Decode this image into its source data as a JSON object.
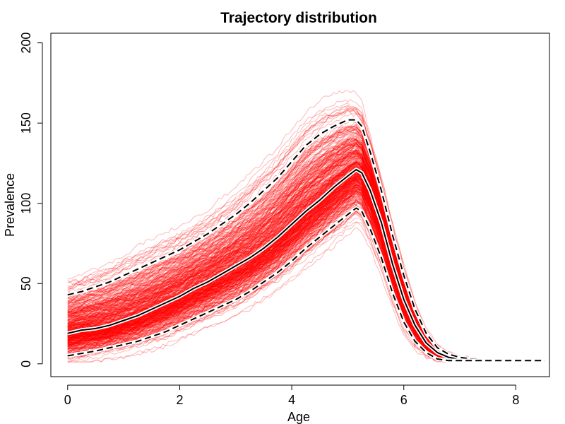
{
  "chart_data": {
    "type": "line",
    "title": "Trajectory distribution",
    "xlabel": "Age",
    "ylabel": "Prevalence",
    "xlim": [
      -0.3,
      8.6
    ],
    "ylim": [
      -8,
      206
    ],
    "x_ticks": [
      0,
      2,
      4,
      6,
      8
    ],
    "y_ticks": [
      0,
      50,
      100,
      150,
      200
    ],
    "x_tick_labels": [
      "0",
      "2",
      "4",
      "6",
      "8"
    ],
    "y_tick_labels": [
      "0",
      "50",
      "100",
      "150",
      "200"
    ],
    "grid": false,
    "legend": "none",
    "colors": {
      "trajectories": "#ff0000",
      "median": "#000000",
      "median_outline": "#ffffff",
      "bounds": "#000000",
      "bounds_outline": "#ffffff"
    },
    "series": [
      {
        "role": "median",
        "style": "solid",
        "x": [
          0,
          0.25,
          0.5,
          0.75,
          1,
          1.25,
          1.5,
          1.75,
          2,
          2.25,
          2.5,
          2.75,
          3,
          3.25,
          3.5,
          3.75,
          4,
          4.25,
          4.5,
          4.75,
          5,
          5.15,
          5.25,
          5.4,
          5.6,
          5.8,
          6,
          6.2,
          6.4,
          6.6,
          6.8,
          7,
          7.2,
          7.5,
          8,
          8.5
        ],
        "y": [
          19,
          21,
          22,
          24,
          27,
          30,
          34,
          38,
          42,
          47,
          51,
          56,
          61,
          66,
          72,
          79,
          87,
          95,
          102,
          110,
          117,
          121,
          119,
          108,
          88,
          62,
          40,
          24,
          13,
          7,
          4,
          3,
          2.5,
          2,
          2,
          2
        ]
      },
      {
        "role": "upper_bound",
        "style": "dashed",
        "x": [
          0,
          0.25,
          0.5,
          0.75,
          1,
          1.25,
          1.5,
          1.75,
          2,
          2.25,
          2.5,
          2.75,
          3,
          3.25,
          3.5,
          3.75,
          4,
          4.25,
          4.5,
          4.75,
          5,
          5.15,
          5.25,
          5.4,
          5.6,
          5.8,
          6,
          6.2,
          6.4,
          6.6,
          6.8,
          7,
          7.2,
          7.5,
          8,
          8.5
        ],
        "y": [
          43,
          45,
          48,
          51,
          55,
          59,
          63,
          67,
          71,
          76,
          81,
          87,
          93,
          100,
          108,
          116,
          126,
          136,
          143,
          148,
          152,
          152,
          148,
          132,
          108,
          80,
          55,
          34,
          19,
          10,
          6,
          4,
          3,
          2.5,
          2,
          2
        ]
      },
      {
        "role": "lower_bound",
        "style": "dashed",
        "x": [
          0,
          0.25,
          0.5,
          0.75,
          1,
          1.25,
          1.5,
          1.75,
          2,
          2.25,
          2.5,
          2.75,
          3,
          3.25,
          3.5,
          3.75,
          4,
          4.25,
          4.5,
          4.75,
          5,
          5.15,
          5.25,
          5.4,
          5.6,
          5.8,
          6,
          6.2,
          6.4,
          6.6,
          6.8,
          7,
          7.2,
          7.5,
          8,
          8.5
        ],
        "y": [
          5,
          6.5,
          8,
          10,
          12,
          14,
          17,
          20,
          24,
          28,
          32,
          36,
          40,
          45,
          51,
          57,
          64,
          72,
          79,
          86,
          93,
          97,
          95,
          84,
          66,
          44,
          26,
          14,
          7,
          3,
          2,
          2,
          2,
          2,
          2,
          2
        ]
      }
    ],
    "trajectory_envelope": {
      "count": 1000,
      "x_end": 7.3,
      "note": "many semi-transparent red simulated trajectories spread around the median"
    }
  }
}
